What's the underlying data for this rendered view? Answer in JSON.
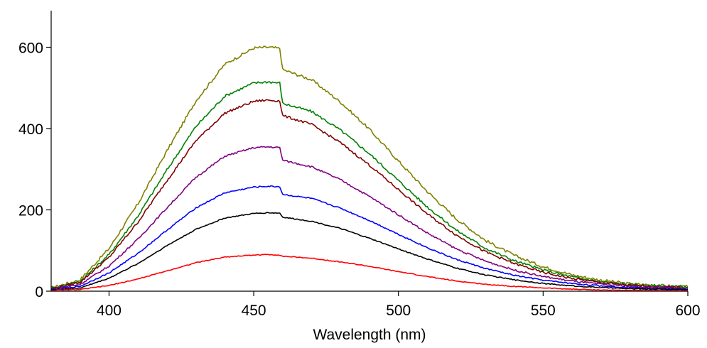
{
  "chart_data": {
    "type": "line",
    "title": "",
    "xlabel": "Wavelength (nm)",
    "ylabel": "",
    "xlim": [
      380,
      600
    ],
    "ylim": [
      0,
      690
    ],
    "grid": false,
    "legend": "none",
    "x_ticks": [
      400,
      450,
      500,
      550,
      600
    ],
    "x_tick_labels": [
      "400",
      "450",
      "500",
      "550",
      "600"
    ],
    "y_ticks": [
      0,
      200,
      400,
      600
    ],
    "y_tick_labels": [
      "0",
      "200",
      "400",
      "600"
    ],
    "series": [
      {
        "color": "#808000",
        "peak": 600,
        "values": [
          [
            380,
            8
          ],
          [
            390,
            28
          ],
          [
            400,
            105
          ],
          [
            410,
            215
          ],
          [
            420,
            345
          ],
          [
            430,
            468
          ],
          [
            440,
            558
          ],
          [
            450,
            598
          ],
          [
            455,
            600
          ],
          [
            459,
            597
          ],
          [
            460,
            545
          ],
          [
            470,
            520
          ],
          [
            480,
            465
          ],
          [
            490,
            398
          ],
          [
            500,
            320
          ],
          [
            510,
            245
          ],
          [
            520,
            178
          ],
          [
            530,
            125
          ],
          [
            540,
            88
          ],
          [
            550,
            60
          ],
          [
            560,
            40
          ],
          [
            570,
            27
          ],
          [
            580,
            18
          ],
          [
            590,
            14
          ],
          [
            600,
            11
          ]
        ]
      },
      {
        "color": "#008000",
        "peak": 515,
        "values": [
          [
            380,
            7
          ],
          [
            390,
            24
          ],
          [
            400,
            90
          ],
          [
            410,
            185
          ],
          [
            420,
            298
          ],
          [
            430,
            405
          ],
          [
            440,
            480
          ],
          [
            450,
            512
          ],
          [
            455,
            515
          ],
          [
            459,
            512
          ],
          [
            460,
            462
          ],
          [
            470,
            442
          ],
          [
            480,
            396
          ],
          [
            490,
            338
          ],
          [
            500,
            272
          ],
          [
            510,
            207
          ],
          [
            520,
            150
          ],
          [
            530,
            106
          ],
          [
            540,
            75
          ],
          [
            550,
            52
          ],
          [
            560,
            35
          ],
          [
            570,
            23
          ],
          [
            580,
            16
          ],
          [
            590,
            13
          ],
          [
            600,
            10
          ]
        ]
      },
      {
        "color": "#800000",
        "peak": 470,
        "values": [
          [
            380,
            6
          ],
          [
            390,
            22
          ],
          [
            400,
            83
          ],
          [
            410,
            170
          ],
          [
            420,
            272
          ],
          [
            430,
            370
          ],
          [
            440,
            438
          ],
          [
            450,
            467
          ],
          [
            455,
            470
          ],
          [
            459,
            468
          ],
          [
            460,
            432
          ],
          [
            470,
            410
          ],
          [
            480,
            365
          ],
          [
            490,
            310
          ],
          [
            500,
            250
          ],
          [
            510,
            190
          ],
          [
            520,
            138
          ],
          [
            530,
            97
          ],
          [
            540,
            68
          ],
          [
            550,
            46
          ],
          [
            560,
            31
          ],
          [
            570,
            21
          ],
          [
            580,
            14
          ],
          [
            590,
            11
          ],
          [
            600,
            8
          ]
        ]
      },
      {
        "color": "#800080",
        "peak": 355,
        "values": [
          [
            380,
            5
          ],
          [
            390,
            17
          ],
          [
            400,
            62
          ],
          [
            410,
            128
          ],
          [
            420,
            205
          ],
          [
            430,
            280
          ],
          [
            440,
            332
          ],
          [
            450,
            353
          ],
          [
            455,
            355
          ],
          [
            459,
            353
          ],
          [
            460,
            322
          ],
          [
            470,
            306
          ],
          [
            480,
            274
          ],
          [
            490,
            233
          ],
          [
            500,
            188
          ],
          [
            510,
            143
          ],
          [
            520,
            104
          ],
          [
            530,
            74
          ],
          [
            540,
            52
          ],
          [
            550,
            36
          ],
          [
            560,
            25
          ],
          [
            570,
            17
          ],
          [
            580,
            12
          ],
          [
            590,
            9
          ],
          [
            600,
            7
          ]
        ]
      },
      {
        "color": "#0000ff",
        "peak": 258,
        "values": [
          [
            380,
            4
          ],
          [
            390,
            12
          ],
          [
            400,
            45
          ],
          [
            410,
            93
          ],
          [
            420,
            150
          ],
          [
            430,
            205
          ],
          [
            440,
            242
          ],
          [
            450,
            256
          ],
          [
            455,
            258
          ],
          [
            459,
            257
          ],
          [
            460,
            238
          ],
          [
            470,
            228
          ],
          [
            480,
            204
          ],
          [
            490,
            174
          ],
          [
            500,
            140
          ],
          [
            510,
            107
          ],
          [
            520,
            78
          ],
          [
            530,
            56
          ],
          [
            540,
            39
          ],
          [
            550,
            27
          ],
          [
            560,
            19
          ],
          [
            570,
            13
          ],
          [
            580,
            9
          ],
          [
            590,
            7
          ],
          [
            600,
            5
          ]
        ]
      },
      {
        "color": "#000000",
        "peak": 193,
        "values": [
          [
            380,
            3
          ],
          [
            390,
            8
          ],
          [
            400,
            32
          ],
          [
            410,
            68
          ],
          [
            420,
            112
          ],
          [
            430,
            152
          ],
          [
            440,
            180
          ],
          [
            450,
            191
          ],
          [
            455,
            193
          ],
          [
            459,
            192
          ],
          [
            460,
            182
          ],
          [
            470,
            172
          ],
          [
            480,
            154
          ],
          [
            490,
            130
          ],
          [
            500,
            104
          ],
          [
            510,
            79
          ],
          [
            520,
            57
          ],
          [
            530,
            40
          ],
          [
            540,
            28
          ],
          [
            550,
            19
          ],
          [
            560,
            13
          ],
          [
            570,
            9
          ],
          [
            580,
            6
          ],
          [
            590,
            5
          ],
          [
            600,
            4
          ]
        ]
      },
      {
        "color": "#ff0000",
        "peak": 90,
        "values": [
          [
            380,
            2
          ],
          [
            390,
            4
          ],
          [
            400,
            14
          ],
          [
            410,
            30
          ],
          [
            420,
            50
          ],
          [
            430,
            70
          ],
          [
            440,
            84
          ],
          [
            450,
            89
          ],
          [
            455,
            90
          ],
          [
            459,
            89
          ],
          [
            460,
            86
          ],
          [
            470,
            81
          ],
          [
            480,
            72
          ],
          [
            490,
            61
          ],
          [
            500,
            48
          ],
          [
            510,
            36
          ],
          [
            520,
            25
          ],
          [
            530,
            17
          ],
          [
            540,
            12
          ],
          [
            550,
            8
          ],
          [
            560,
            5
          ],
          [
            570,
            3
          ],
          [
            580,
            2
          ],
          [
            590,
            2
          ],
          [
            600,
            1
          ]
        ]
      }
    ]
  }
}
